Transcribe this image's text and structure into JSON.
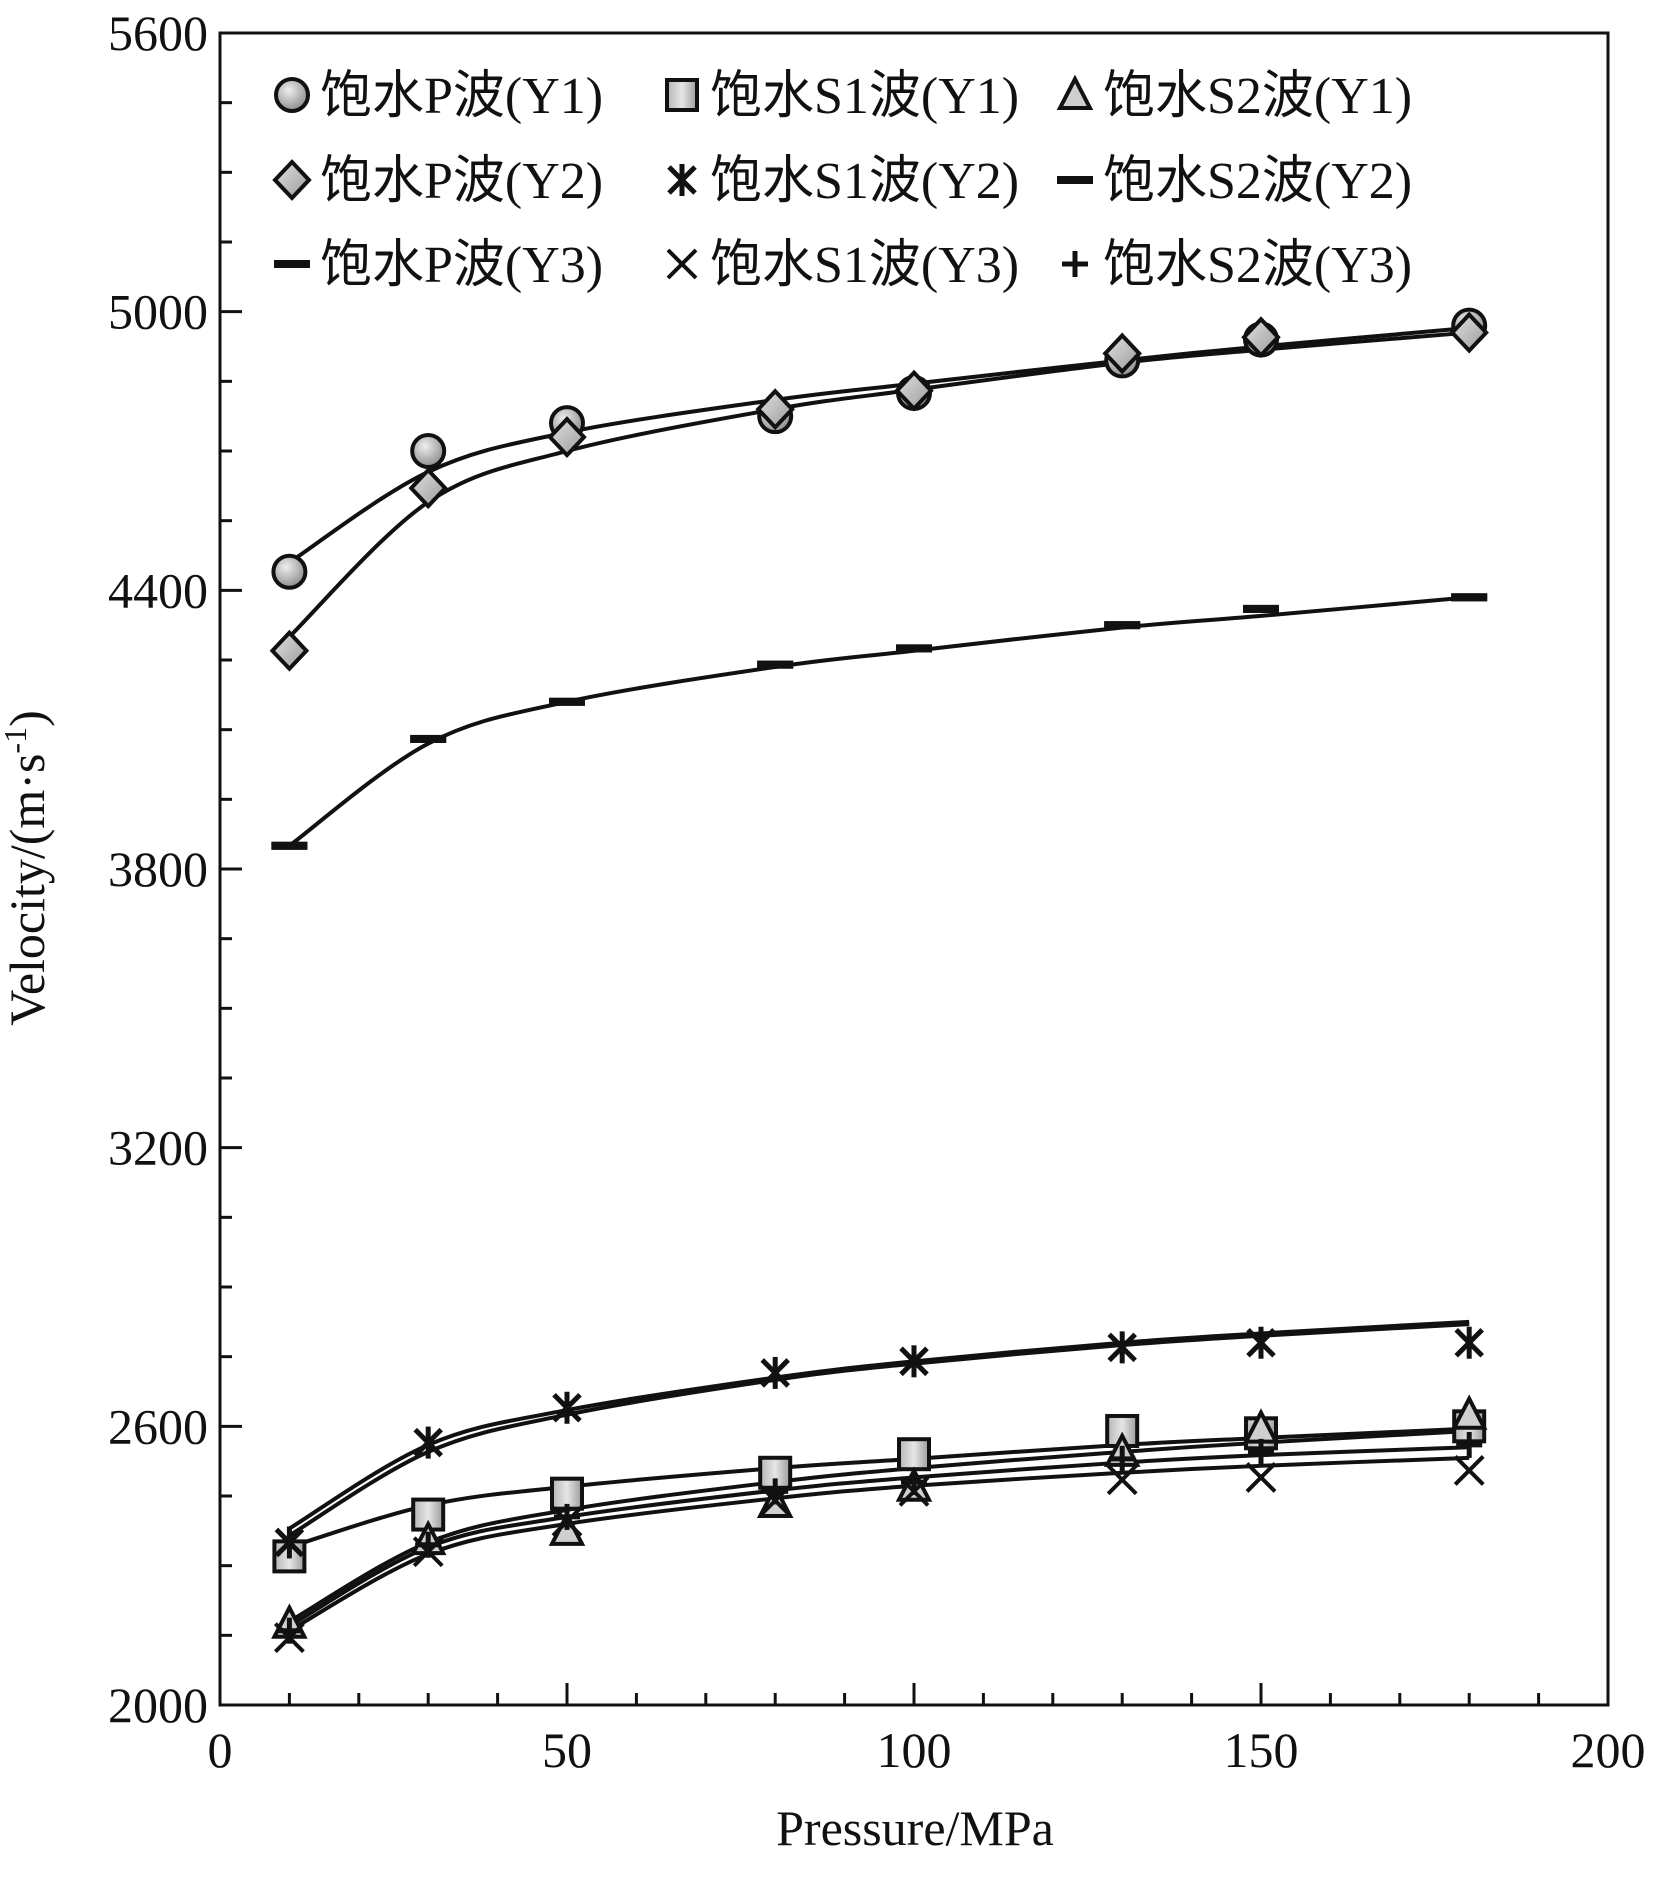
{
  "chart_data": {
    "type": "scatter",
    "title": "",
    "xlabel": "Pressure/MPa",
    "ylabel": "Velocity/(m·s",
    "ylabel_sup": "-1",
    "ylabel_close": ")",
    "xlim": [
      0,
      200
    ],
    "ylim": [
      2000,
      5600
    ],
    "xticks": [
      0,
      50,
      100,
      150,
      200
    ],
    "yticks": [
      2000,
      2600,
      3200,
      3800,
      4400,
      5000,
      5600
    ],
    "x_minor_step": 10,
    "y_minor_step": 150,
    "grid": false,
    "legend_position": "top-left",
    "x": [
      10,
      30,
      50,
      80,
      100,
      130,
      150,
      180
    ],
    "series": [
      {
        "name": "饱水P波(Y1)",
        "marker": "circle",
        "color": "#aaaaaa",
        "values": [
          4440,
          4700,
          4760,
          4775,
          4825,
          4895,
          4940,
          4970
        ]
      },
      {
        "name": "饱水S1波(Y1)",
        "marker": "square",
        "color": "#aaaaaa",
        "values": [
          2320,
          2410,
          2455,
          2500,
          2540,
          2590,
          2585,
          2600
        ]
      },
      {
        "name": "饱水S2波(Y1)",
        "marker": "triangle",
        "color": "#aaaaaa",
        "values": [
          2175,
          2355,
          2375,
          2435,
          2470,
          2545,
          2595,
          2625
        ]
      },
      {
        "name": "饱水P波(Y2)",
        "marker": "diamond",
        "color": "#aaaaaa",
        "values": [
          4270,
          4620,
          4730,
          4790,
          4830,
          4910,
          4945,
          4955
        ]
      },
      {
        "name": "饱水S1波(Y2)",
        "marker": "star",
        "color": "#111111",
        "values": [
          2350,
          2565,
          2640,
          2715,
          2740,
          2770,
          2780,
          2780
        ]
      },
      {
        "name": "饱水S2波(Y2)",
        "marker": "dash",
        "color": "#111111",
        "values": [
          3850,
          4080,
          4160,
          4240,
          4275,
          4325,
          4360,
          4385
        ]
      },
      {
        "name": "饱水P波(Y3)",
        "marker": "dash",
        "color": "#111111",
        "values": [
          3850,
          4080,
          4160,
          4240,
          4275,
          4325,
          4360,
          4385
        ]
      },
      {
        "name": "饱水S1波(Y3)",
        "marker": "x",
        "color": "#111111",
        "values": [
          2145,
          2330,
          2395,
          2440,
          2460,
          2485,
          2490,
          2505
        ]
      },
      {
        "name": "饱水S2波(Y3)",
        "marker": "plus",
        "color": "#111111",
        "values": [
          2160,
          2345,
          2405,
          2460,
          2480,
          2530,
          2545,
          2560
        ]
      }
    ],
    "fit_curves": [
      {
        "values": [
          4460,
          4655,
          4740,
          4810,
          4845,
          4895,
          4925,
          4965
        ]
      },
      {
        "values": [
          4300,
          4590,
          4700,
          4790,
          4832,
          4890,
          4918,
          4955
        ]
      },
      {
        "values": [
          3850,
          4070,
          4160,
          4235,
          4270,
          4320,
          4345,
          4385
        ]
      },
      {
        "values": [
          2380,
          2560,
          2635,
          2705,
          2740,
          2780,
          2800,
          2825
        ]
      },
      {
        "values": [
          2365,
          2545,
          2625,
          2700,
          2735,
          2775,
          2795,
          2820
        ]
      },
      {
        "values": [
          2340,
          2430,
          2470,
          2510,
          2530,
          2560,
          2575,
          2595
        ]
      },
      {
        "values": [
          2180,
          2350,
          2420,
          2480,
          2510,
          2545,
          2565,
          2590
        ]
      },
      {
        "values": [
          2170,
          2340,
          2405,
          2462,
          2490,
          2522,
          2538,
          2555
        ]
      },
      {
        "values": [
          2160,
          2325,
          2390,
          2445,
          2472,
          2500,
          2515,
          2532
        ]
      }
    ]
  }
}
